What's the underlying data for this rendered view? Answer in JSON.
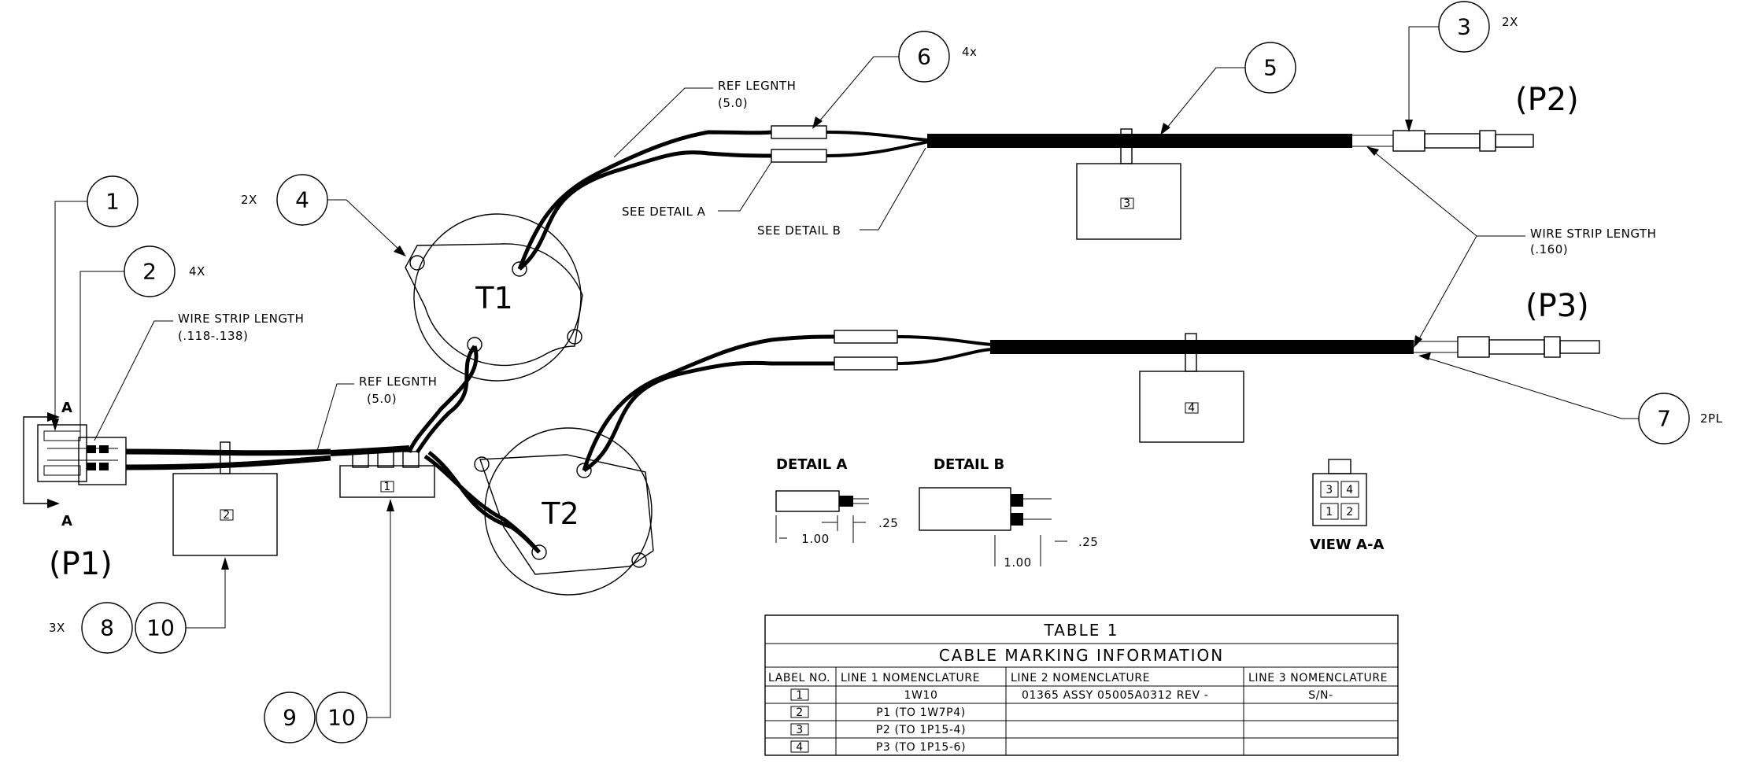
{
  "callouts": {
    "b1": "1",
    "b2": "2",
    "b2_qty": "4X",
    "b3": "3",
    "b3_qty": "2X",
    "b4": "4",
    "b4_qty": "2X",
    "b5": "5",
    "b6": "6",
    "b6_qty": "4x",
    "b7": "7",
    "b7_qty": "2PL",
    "b8": "8",
    "b8_qty": "3X",
    "b9": "9",
    "b10a": "10",
    "b10b": "10"
  },
  "notes": {
    "ref_length_top_l1": "REF LEGNTH",
    "ref_length_top_l2": "(5.0)",
    "ref_length_left_l1": "REF LEGNTH",
    "ref_length_left_l2": "(5.0)",
    "see_detail_a": "SEE DETAIL A",
    "see_detail_b": "SEE DETAIL B",
    "wire_strip_left_l1": "WIRE STRIP LENGTH",
    "wire_strip_left_l2": "(.118-.138)",
    "wire_strip_right_l1": "WIRE STRIP LENGTH",
    "wire_strip_right_l2": "(.160)"
  },
  "connectors": {
    "p1": "(P1)",
    "p2": "(P2)",
    "p3": "(P3)"
  },
  "transformers": {
    "t1": "T1",
    "t2": "T2"
  },
  "section": {
    "a_top": "A",
    "a_bottom": "A",
    "view": "VIEW A-A"
  },
  "pin_numbers": [
    "3",
    "4",
    "1",
    "2"
  ],
  "tag_labels": {
    "tag1": "1",
    "tag2": "2",
    "tag3": "3",
    "tag4": "4"
  },
  "details": {
    "a_title": "DETAIL A",
    "b_title": "DETAIL B",
    "a_dim_small": ".25",
    "a_dim_big": "1.00",
    "b_dim_small": ".25",
    "b_dim_big": "1.00"
  },
  "table": {
    "title": "TABLE 1",
    "subtitle": "CABLE MARKING INFORMATION",
    "headers": [
      "LABEL NO.",
      "LINE 1 NOMENCLATURE",
      "LINE 2 NOMENCLATURE",
      "LINE 3 NOMENCLATURE"
    ],
    "rows": [
      {
        "label": "1",
        "line1": "1W10",
        "line2": "01365 ASSY 05005A0312 REV -",
        "line3": "S/N-"
      },
      {
        "label": "2",
        "line1": "P1 (TO 1W7P4)",
        "line2": "",
        "line3": ""
      },
      {
        "label": "3",
        "line1": "P2 (TO 1P15-4)",
        "line2": "",
        "line3": ""
      },
      {
        "label": "4",
        "line1": "P3 (TO 1P15-6)",
        "line2": "",
        "line3": ""
      }
    ]
  }
}
